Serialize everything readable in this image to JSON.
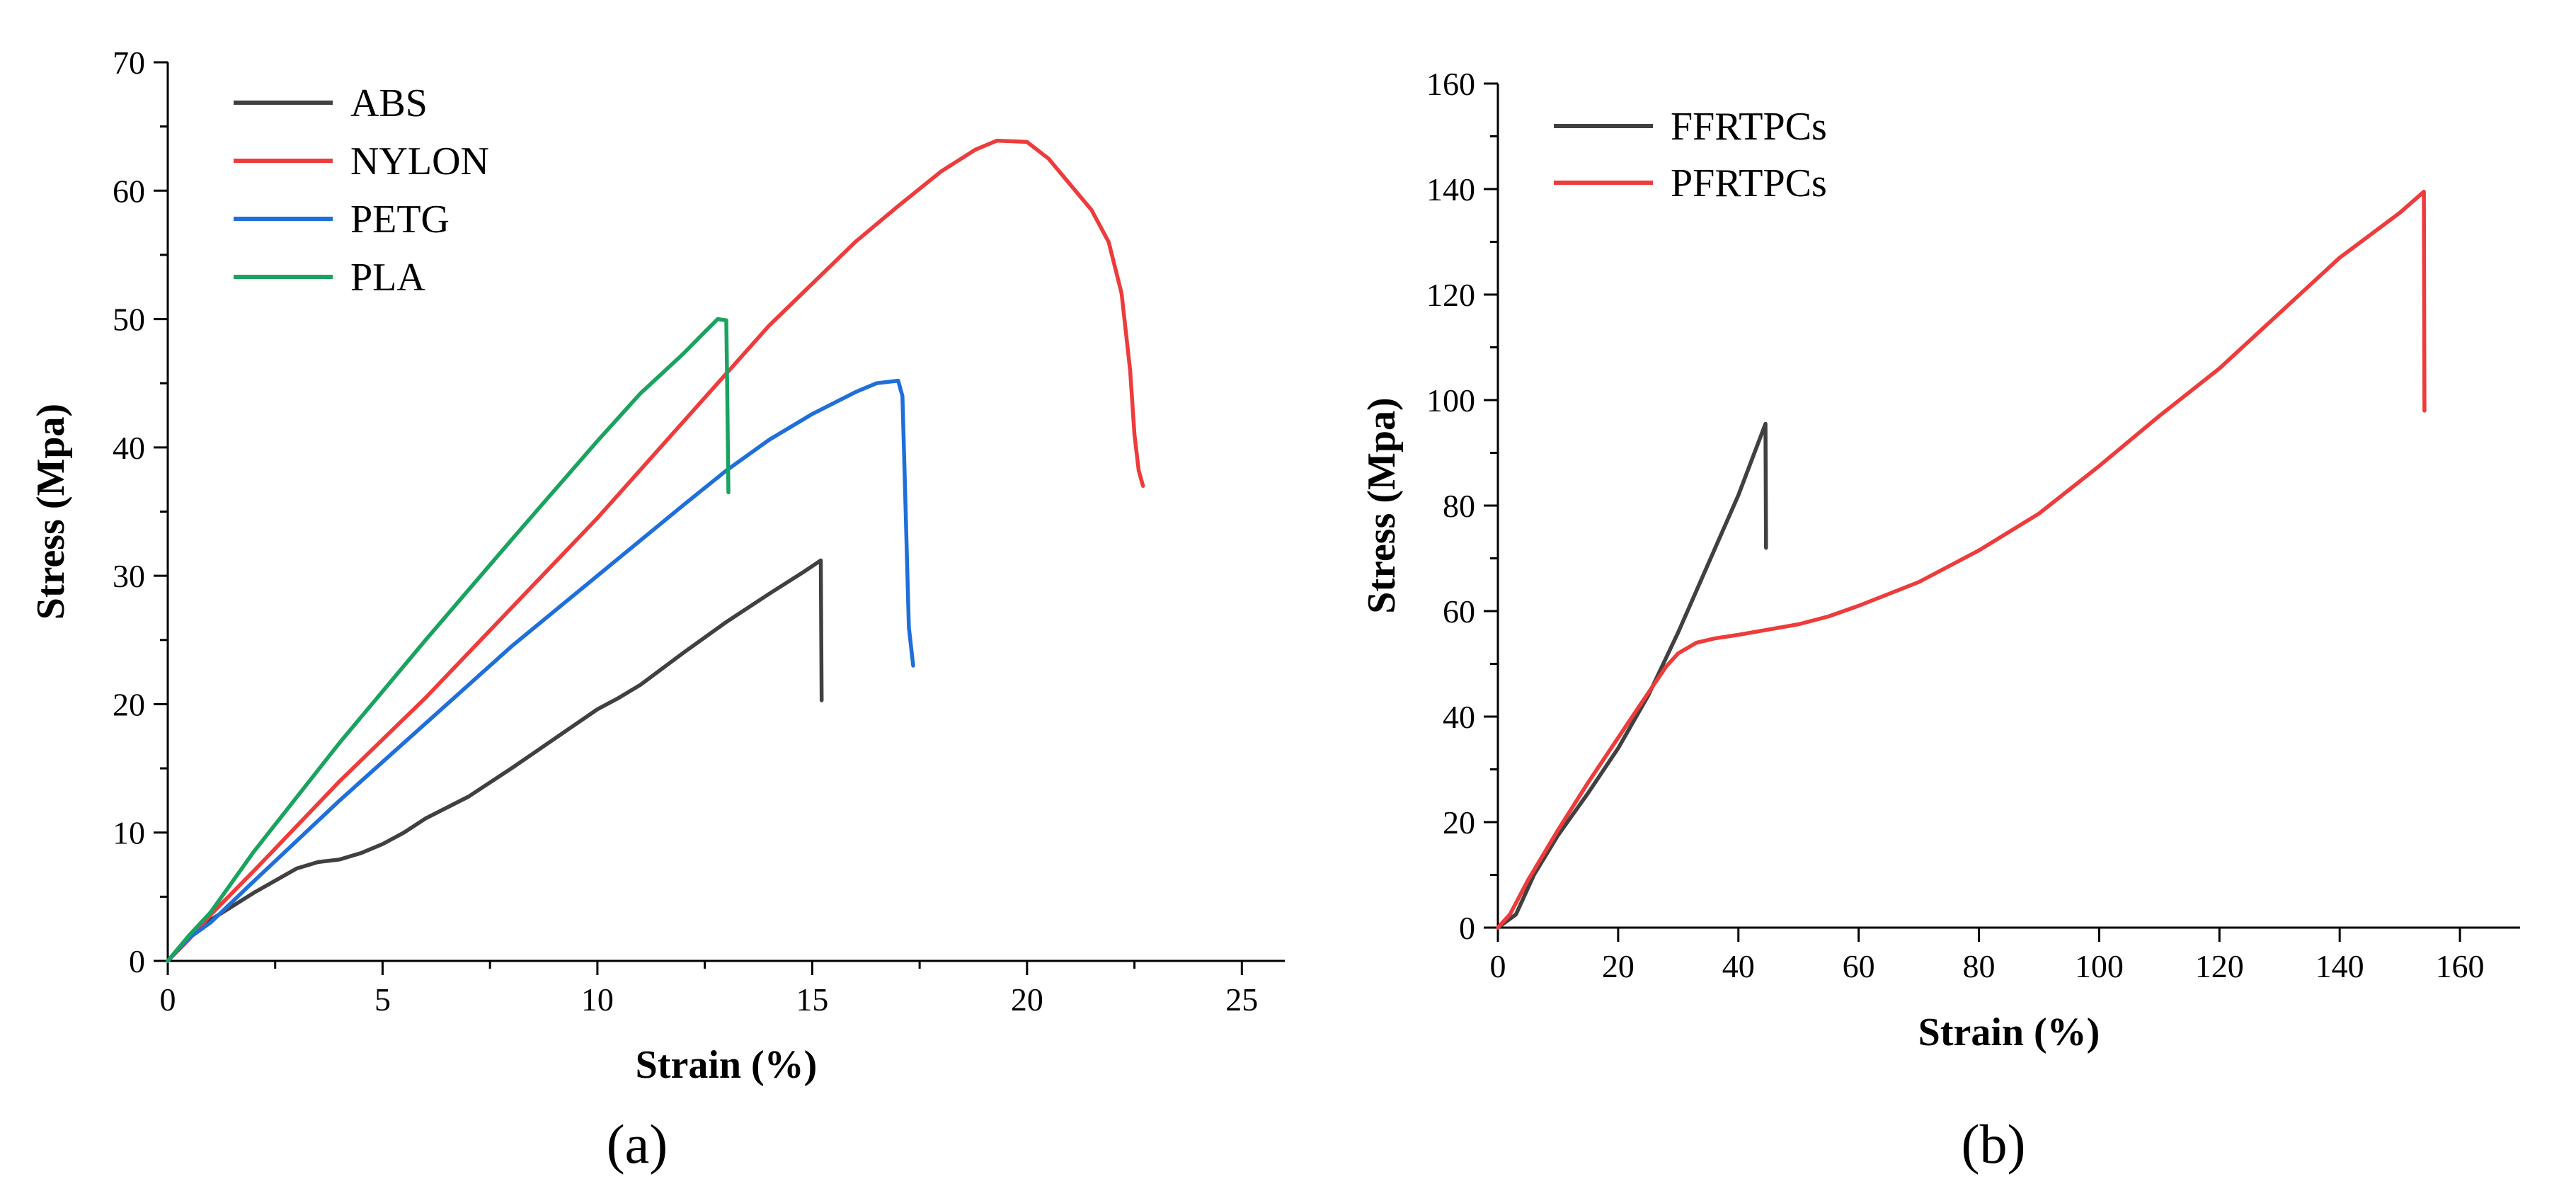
{
  "chart_data": [
    {
      "panel": "a",
      "panel_label": "(a)",
      "type": "line",
      "xlabel": "Strain (%)",
      "ylabel": "Stress (Mpa)",
      "xlim": [
        0,
        26
      ],
      "ylim": [
        0,
        70
      ],
      "xticks": [
        0,
        5,
        10,
        15,
        20,
        25
      ],
      "yticks": [
        0,
        10,
        20,
        30,
        40,
        50,
        60,
        70
      ],
      "legend_position": "top-left",
      "series": [
        {
          "name": "ABS",
          "color": "#404040",
          "points": [
            [
              0,
              0
            ],
            [
              0.5,
              1.8
            ],
            [
              1,
              3.2
            ],
            [
              2,
              5.3
            ],
            [
              3,
              7.2
            ],
            [
              3.5,
              7.7
            ],
            [
              4,
              7.9
            ],
            [
              4.5,
              8.4
            ],
            [
              5,
              9.1
            ],
            [
              5.5,
              10.0
            ],
            [
              6,
              11.1
            ],
            [
              7,
              12.8
            ],
            [
              8,
              15.0
            ],
            [
              9,
              17.3
            ],
            [
              10,
              19.6
            ],
            [
              10.5,
              20.5
            ],
            [
              11,
              21.5
            ],
            [
              12,
              24.0
            ],
            [
              13,
              26.4
            ],
            [
              14,
              28.6
            ],
            [
              14.8,
              30.3
            ],
            [
              15.2,
              31.2
            ],
            [
              15.22,
              20.3
            ]
          ]
        },
        {
          "name": "NYLON",
          "color": "#ee3b3b",
          "points": [
            [
              0,
              0
            ],
            [
              0.5,
              1.7
            ],
            [
              1,
              3.6
            ],
            [
              2,
              7.0
            ],
            [
              4,
              14.0
            ],
            [
              6,
              20.5
            ],
            [
              8,
              27.5
            ],
            [
              10,
              34.5
            ],
            [
              12,
              42.0
            ],
            [
              14,
              49.5
            ],
            [
              16,
              56.0
            ],
            [
              17,
              58.8
            ],
            [
              18,
              61.5
            ],
            [
              18.8,
              63.2
            ],
            [
              19.3,
              63.9
            ],
            [
              20,
              63.8
            ],
            [
              20.5,
              62.5
            ],
            [
              21,
              60.5
            ],
            [
              21.5,
              58.5
            ],
            [
              21.9,
              56.0
            ],
            [
              22.2,
              52.0
            ],
            [
              22.4,
              46.0
            ],
            [
              22.5,
              41.0
            ],
            [
              22.6,
              38.2
            ],
            [
              22.7,
              37.0
            ]
          ]
        },
        {
          "name": "PETG",
          "color": "#1f6fdb",
          "points": [
            [
              0,
              0
            ],
            [
              0.5,
              1.8
            ],
            [
              1,
              3.0
            ],
            [
              2,
              6.2
            ],
            [
              4,
              12.5
            ],
            [
              6,
              18.5
            ],
            [
              8,
              24.5
            ],
            [
              10,
              30.0
            ],
            [
              12,
              35.5
            ],
            [
              13,
              38.2
            ],
            [
              14,
              40.6
            ],
            [
              15,
              42.6
            ],
            [
              16,
              44.3
            ],
            [
              16.5,
              45.0
            ],
            [
              17,
              45.2
            ],
            [
              17.1,
              44.0
            ],
            [
              17.15,
              38.0
            ],
            [
              17.2,
              32.0
            ],
            [
              17.25,
              26.0
            ],
            [
              17.35,
              23.0
            ]
          ]
        },
        {
          "name": "PLA",
          "color": "#1aa35f",
          "points": [
            [
              0,
              0
            ],
            [
              0.5,
              2.0
            ],
            [
              1,
              3.8
            ],
            [
              2,
              8.5
            ],
            [
              4,
              17.0
            ],
            [
              6,
              25.0
            ],
            [
              8,
              32.8
            ],
            [
              10,
              40.5
            ],
            [
              11,
              44.2
            ],
            [
              12,
              47.3
            ],
            [
              12.5,
              49.0
            ],
            [
              12.8,
              50.0
            ],
            [
              13,
              49.9
            ],
            [
              13.02,
              45.0
            ],
            [
              13.05,
              36.5
            ]
          ]
        }
      ]
    },
    {
      "panel": "b",
      "panel_label": "(b)",
      "type": "line",
      "xlabel": "Strain (%)",
      "ylabel": "Stress (Mpa)",
      "xlim": [
        0,
        170
      ],
      "ylim": [
        0,
        160
      ],
      "xticks": [
        0,
        20,
        40,
        60,
        80,
        100,
        120,
        140,
        160
      ],
      "yticks": [
        0,
        20,
        40,
        60,
        80,
        100,
        120,
        140,
        160
      ],
      "legend_position": "top-left",
      "series": [
        {
          "name": "FFRTPCs",
          "color": "#404040",
          "points": [
            [
              0,
              0
            ],
            [
              3,
              2.5
            ],
            [
              6,
              10
            ],
            [
              10,
              17.5
            ],
            [
              15,
              25.5
            ],
            [
              20,
              34
            ],
            [
              25,
              44
            ],
            [
              30,
              56
            ],
            [
              35,
              69
            ],
            [
              40,
              82
            ],
            [
              44.5,
              95.5
            ],
            [
              44.6,
              72
            ]
          ]
        },
        {
          "name": "PFRTPCs",
          "color": "#ee3b3b",
          "points": [
            [
              0,
              0
            ],
            [
              2,
              2.5
            ],
            [
              5,
              9
            ],
            [
              10,
              18.5
            ],
            [
              15,
              27.5
            ],
            [
              20,
              36
            ],
            [
              25,
              44.5
            ],
            [
              28,
              49.5
            ],
            [
              30,
              52
            ],
            [
              33,
              54
            ],
            [
              36,
              54.8
            ],
            [
              40,
              55.5
            ],
            [
              45,
              56.5
            ],
            [
              50,
              57.5
            ],
            [
              55,
              59
            ],
            [
              60,
              61
            ],
            [
              70,
              65.5
            ],
            [
              80,
              71.5
            ],
            [
              90,
              78.5
            ],
            [
              100,
              87.5
            ],
            [
              110,
              97
            ],
            [
              120,
              106
            ],
            [
              130,
              116.5
            ],
            [
              140,
              127
            ],
            [
              150,
              135.5
            ],
            [
              154,
              139.5
            ],
            [
              154.1,
              98
            ]
          ]
        }
      ]
    }
  ]
}
